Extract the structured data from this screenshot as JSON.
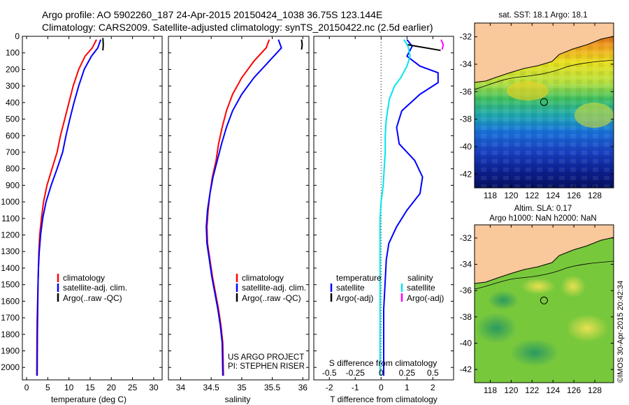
{
  "header": {
    "line1": "Argo profile: AO 5902260_187 24-Apr-2015 20150424_1038 36.75S 123.144E",
    "line2": "Climatology: CARS2009. Satellite-adjusted climatology: synTS_20150422.nc (2.5d earlier)"
  },
  "colors": {
    "red": "#ff0000",
    "blue": "#0000ff",
    "black": "#000000",
    "cyan": "#00e5ee",
    "magenta": "#ff00ff",
    "land": "#f9c89b"
  },
  "depth_ticks": [
    "0",
    "100",
    "200",
    "300",
    "400",
    "500",
    "600",
    "700",
    "800",
    "900",
    "1000",
    "1100",
    "1200",
    "1300",
    "1400",
    "1500",
    "1600",
    "1700",
    "1800",
    "1900",
    "2000"
  ],
  "chart_data": [
    {
      "type": "line",
      "name": "temperature",
      "xlabel": "temperature (deg C)",
      "xlim": [
        -1,
        32
      ],
      "ylim": [
        0,
        2075
      ],
      "y_inverted": true,
      "xticks": [
        "0",
        "5",
        "10",
        "15",
        "20",
        "25",
        "30"
      ],
      "legend": [
        "climatology",
        "satellite-adj. clim.",
        "Argo(..raw -QC)"
      ],
      "series": [
        {
          "name": "climatology",
          "color": "red",
          "x": [
            16.5,
            15.5,
            13.8,
            12.3,
            11.0,
            10.0,
            9.0,
            8.0,
            7.2,
            6.0,
            4.8,
            4.0,
            3.5,
            3.1,
            2.9,
            2.8,
            2.7,
            2.6,
            2.5,
            2.45,
            2.4
          ],
          "y": [
            20,
            70,
            120,
            200,
            300,
            400,
            500,
            600,
            700,
            800,
            900,
            1000,
            1100,
            1200,
            1300,
            1400,
            1500,
            1600,
            1700,
            1800,
            2050
          ]
        },
        {
          "name": "satellite-adj. clim.",
          "color": "blue",
          "x": [
            17.5,
            16.8,
            15.3,
            13.6,
            12.3,
            11.2,
            10.2,
            9.3,
            8.5,
            7.2,
            5.8,
            4.6,
            3.8,
            3.3,
            3.0,
            2.8,
            2.7,
            2.65,
            2.6,
            2.55,
            2.5
          ],
          "y": [
            20,
            70,
            120,
            200,
            300,
            400,
            500,
            600,
            700,
            800,
            900,
            1000,
            1100,
            1200,
            1300,
            1400,
            1500,
            1600,
            1700,
            1800,
            2050
          ]
        },
        {
          "name": "Argo(..raw -QC)",
          "color": "black",
          "x": [
            18.0,
            18.1,
            18.0
          ],
          "y": [
            10,
            50,
            85
          ]
        }
      ]
    },
    {
      "type": "line",
      "name": "salinity",
      "xlabel": "salinity",
      "xlim": [
        33.8,
        36.1
      ],
      "ylim": [
        0,
        2075
      ],
      "y_inverted": true,
      "xticks": [
        "34",
        "34.5",
        "35",
        "35.5",
        "36"
      ],
      "legend": [
        "climatology",
        "satellite-adj. clim.",
        "Argo(..raw -QC)"
      ],
      "annotation": [
        "US ARGO PROJECT",
        "PI: STEPHEN RISER"
      ],
      "series": [
        {
          "name": "climatology",
          "color": "red",
          "x": [
            35.45,
            35.4,
            35.2,
            35.0,
            34.85,
            34.75,
            34.68,
            34.62,
            34.58,
            34.52,
            34.48,
            34.45,
            34.43,
            34.44,
            34.48,
            34.52,
            34.57,
            34.62,
            34.66,
            34.69,
            34.7
          ],
          "y": [
            20,
            70,
            150,
            250,
            350,
            450,
            550,
            650,
            750,
            850,
            950,
            1050,
            1150,
            1250,
            1350,
            1450,
            1550,
            1650,
            1750,
            1850,
            2050
          ]
        },
        {
          "name": "satellite-adj. clim.",
          "color": "blue",
          "x": [
            35.6,
            35.65,
            35.45,
            35.2,
            35.0,
            34.85,
            34.75,
            34.67,
            34.6,
            34.53,
            34.48,
            34.44,
            34.42,
            34.43,
            34.47,
            34.51,
            34.56,
            34.61,
            34.65,
            34.68,
            34.69
          ],
          "y": [
            20,
            70,
            150,
            250,
            350,
            450,
            550,
            650,
            750,
            850,
            950,
            1050,
            1150,
            1250,
            1350,
            1450,
            1550,
            1650,
            1750,
            1850,
            2050
          ]
        },
        {
          "name": "Argo(..raw -QC)",
          "color": "black",
          "x": [
            35.98,
            35.99,
            35.98
          ],
          "y": [
            20,
            50,
            80
          ]
        }
      ]
    },
    {
      "type": "line",
      "name": "difference",
      "xlabel": "T difference from climatology",
      "xlabel2": "S difference from climatology",
      "xlim": [
        -2.6,
        2.8
      ],
      "ylim": [
        0,
        2075
      ],
      "y_inverted": true,
      "xticks": [
        "-2",
        "-1",
        "0",
        "1",
        "2"
      ],
      "xticks2": [
        "-0.5",
        "-0.25",
        "0",
        "0.25",
        "0.5"
      ],
      "legend_headers": [
        "temperature",
        "salinity"
      ],
      "legend": [
        "satellite",
        "Argo(-adj)",
        "satellite",
        "Argo(-adj)"
      ],
      "series": [
        {
          "name": "temperature satellite",
          "color": "blue",
          "x": [
            1.0,
            1.2,
            1.0,
            1.5,
            2.2,
            2.2,
            1.5,
            0.8,
            0.6,
            0.7,
            1.3,
            1.6,
            1.5,
            1.0,
            0.6,
            0.3,
            0.2,
            0.15,
            0.1,
            0.1,
            0.1
          ],
          "y": [
            20,
            60,
            120,
            180,
            220,
            280,
            350,
            450,
            550,
            650,
            750,
            850,
            950,
            1050,
            1150,
            1250,
            1350,
            1500,
            1650,
            1800,
            2050
          ]
        },
        {
          "name": "temperature Argo(-adj)",
          "color": "black",
          "x": [
            1.0,
            2.3
          ],
          "y": [
            50,
            85
          ]
        },
        {
          "name": "salinity satellite",
          "color": "cyan",
          "x": [
            0.22,
            0.26,
            0.28,
            0.25,
            0.19,
            0.13,
            0.08,
            0.05,
            0.04,
            0.04,
            0.03,
            0.02,
            0.0,
            -0.01,
            -0.01,
            -0.01,
            -0.01,
            -0.01,
            -0.01,
            -0.01
          ],
          "y": [
            20,
            60,
            120,
            180,
            250,
            300,
            380,
            500,
            600,
            700,
            800,
            900,
            1000,
            1100,
            1200,
            1300,
            1400,
            1550,
            1750,
            2050
          ]
        },
        {
          "name": "salinity Argo(-adj)",
          "color": "magenta",
          "x": [
            0.58,
            0.6,
            0.59
          ],
          "y": [
            20,
            50,
            80
          ]
        }
      ]
    },
    {
      "type": "heatmap",
      "name": "sst-map",
      "title": "sat. SST: 18.1  Argo: 18.1",
      "xlim": [
        116.5,
        129.8
      ],
      "ylim": [
        -43,
        -31
      ],
      "xticks": [
        "118",
        "120",
        "122",
        "124",
        "126",
        "128"
      ],
      "yticks": [
        "-32",
        "-34",
        "-36",
        "-38",
        "-40",
        "-42"
      ],
      "argo_position": {
        "lon": 123.144,
        "lat": -36.75
      }
    },
    {
      "type": "heatmap",
      "name": "sla-map",
      "title": "Altim. SLA: 0.17",
      "subtitle": "Argo h1000: NaN h2000: NaN",
      "xlim": [
        116.5,
        129.8
      ],
      "ylim": [
        -43,
        -31
      ],
      "xticks": [
        "118",
        "120",
        "122",
        "124",
        "126",
        "128"
      ],
      "yticks": [
        "-32",
        "-34",
        "-36",
        "-38",
        "-40",
        "-42"
      ],
      "argo_position": {
        "lon": 123.144,
        "lat": -36.75
      }
    }
  ],
  "credit": "©IMOS 30-Apr-2015 20:42:34"
}
